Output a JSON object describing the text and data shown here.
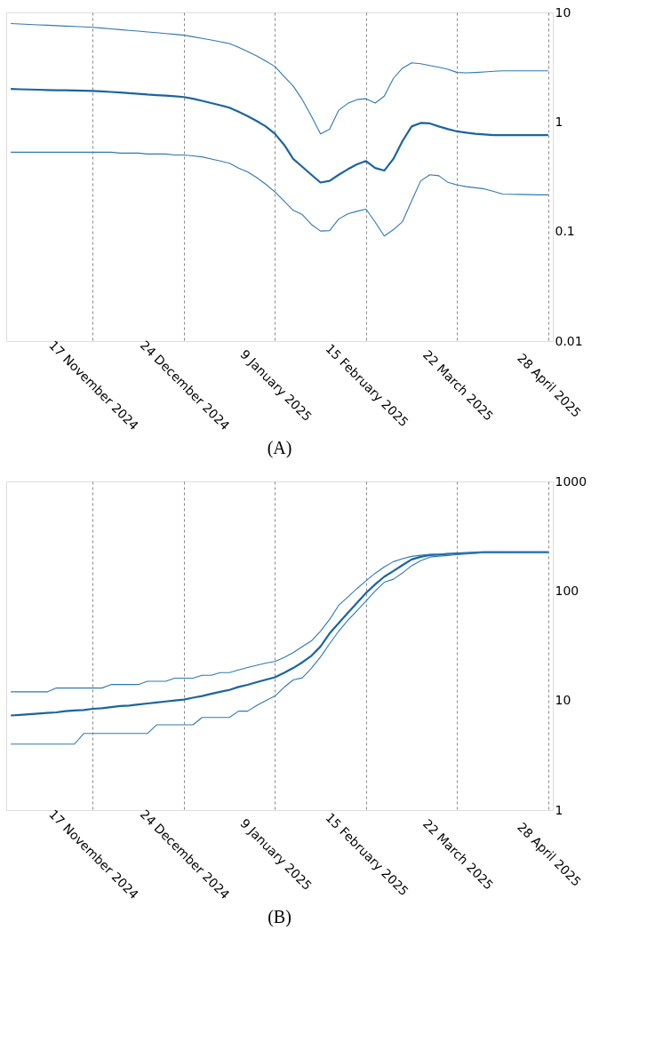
{
  "chart_data": [
    {
      "type": "line",
      "title": "(A)",
      "log": "y",
      "grid": "x",
      "line_style": "solid",
      "marker": "none",
      "ylim": [
        0.01,
        10
      ],
      "categories": [
        null,
        null,
        null,
        null,
        null,
        null,
        null,
        null,
        null,
        "17 November 2024",
        null,
        null,
        null,
        null,
        null,
        null,
        null,
        null,
        null,
        "24 December 2024",
        null,
        null,
        null,
        null,
        null,
        null,
        null,
        null,
        null,
        "9 January 2025",
        null,
        null,
        null,
        null,
        null,
        null,
        null,
        null,
        null,
        "15 February 2025",
        null,
        null,
        null,
        null,
        null,
        null,
        null,
        null,
        null,
        "22 March 2025",
        null,
        null,
        null,
        null,
        null,
        null,
        null,
        null,
        null,
        "28 April 2025"
      ],
      "yticks": [
        0.01,
        0.1,
        1,
        10
      ],
      "series": [
        {
          "color": "#1b64a0",
          "values": [
            2.0,
            1.99,
            1.98,
            1.97,
            1.96,
            1.95,
            1.95,
            1.94,
            1.93,
            1.92,
            1.9,
            1.88,
            1.86,
            1.83,
            1.81,
            1.78,
            1.76,
            1.74,
            1.72,
            1.69,
            1.63,
            1.56,
            1.49,
            1.42,
            1.35,
            1.24,
            1.13,
            1.02,
            0.91,
            0.78,
            0.62,
            0.46,
            0.39,
            0.33,
            0.28,
            0.29,
            0.33,
            0.37,
            0.41,
            0.44,
            0.38,
            0.36,
            0.46,
            0.67,
            0.91,
            0.98,
            0.97,
            0.91,
            0.86,
            0.82,
            0.8,
            0.78,
            0.77,
            0.76,
            0.76,
            0.76,
            0.76,
            0.76,
            0.76,
            0.76
          ]
        },
        {
          "color": "#2f78b4",
          "values": [
            7.92,
            7.85,
            7.78,
            7.71,
            7.64,
            7.58,
            7.51,
            7.45,
            7.38,
            7.31,
            7.2,
            7.08,
            6.97,
            6.86,
            6.75,
            6.64,
            6.53,
            6.42,
            6.31,
            6.2,
            6.0,
            5.8,
            5.6,
            5.4,
            5.2,
            4.8,
            4.4,
            4.0,
            3.6,
            3.21,
            2.6,
            2.13,
            1.6,
            1.13,
            0.78,
            0.86,
            1.28,
            1.48,
            1.6,
            1.63,
            1.49,
            1.72,
            2.5,
            3.1,
            3.47,
            3.4,
            3.28,
            3.16,
            3.03,
            2.83,
            2.81,
            2.83,
            2.86,
            2.9,
            2.93,
            2.93,
            2.93,
            2.93,
            2.93,
            2.93
          ]
        },
        {
          "color": "#2f78b4",
          "values": [
            0.53,
            0.53,
            0.53,
            0.53,
            0.53,
            0.53,
            0.53,
            0.53,
            0.53,
            0.53,
            0.53,
            0.53,
            0.52,
            0.52,
            0.52,
            0.51,
            0.51,
            0.51,
            0.5,
            0.5,
            0.49,
            0.48,
            0.46,
            0.44,
            0.42,
            0.38,
            0.35,
            0.31,
            0.27,
            0.23,
            0.19,
            0.156,
            0.143,
            0.116,
            0.101,
            0.102,
            0.13,
            0.145,
            0.153,
            0.16,
            0.122,
            0.091,
            0.104,
            0.123,
            0.19,
            0.29,
            0.33,
            0.323,
            0.281,
            0.266,
            0.257,
            0.251,
            0.245,
            0.232,
            0.22,
            0.219,
            0.218,
            0.217,
            0.216,
            0.216
          ]
        }
      ]
    },
    {
      "type": "line",
      "title": "(B)",
      "log": "y",
      "grid": "x",
      "line_style": "solid",
      "marker": "none",
      "ylim": [
        1,
        1000
      ],
      "categories": [
        null,
        null,
        null,
        null,
        null,
        null,
        null,
        null,
        null,
        "17 November 2024",
        null,
        null,
        null,
        null,
        null,
        null,
        null,
        null,
        null,
        "24 December 2024",
        null,
        null,
        null,
        null,
        null,
        null,
        null,
        null,
        null,
        "9 January 2025",
        null,
        null,
        null,
        null,
        null,
        null,
        null,
        null,
        null,
        "15 February 2025",
        null,
        null,
        null,
        null,
        null,
        null,
        null,
        null,
        null,
        "22 March 2025",
        null,
        null,
        null,
        null,
        null,
        null,
        null,
        null,
        null,
        "28 April 2025"
      ],
      "yticks": [
        1,
        10,
        100,
        1000
      ],
      "series": [
        {
          "color": "#1b64a0",
          "values": [
            7.3,
            7.4,
            7.5,
            7.6,
            7.7,
            7.8,
            8.0,
            8.1,
            8.2,
            8.4,
            8.5,
            8.7,
            8.9,
            9.0,
            9.2,
            9.4,
            9.6,
            9.8,
            10.0,
            10.2,
            10.6,
            11.0,
            11.5,
            12.0,
            12.5,
            13.3,
            13.9,
            14.7,
            15.5,
            16.3,
            17.9,
            19.8,
            22.3,
            25.6,
            31.1,
            41,
            51,
            63,
            78,
            96,
            115,
            135,
            152,
            172,
            194,
            205,
            213,
            215,
            218,
            220,
            222,
            224,
            226,
            226,
            226,
            226,
            226,
            226,
            226,
            226
          ]
        },
        {
          "color": "#2f78b4",
          "values": [
            12,
            12,
            12,
            12,
            12,
            13,
            13,
            13,
            13,
            13,
            13,
            14,
            14,
            14,
            14,
            15,
            15,
            15,
            16,
            16,
            16,
            17,
            17,
            18,
            18,
            19,
            20,
            21,
            22,
            22.7,
            24.7,
            27.4,
            31,
            35,
            43,
            55,
            74,
            88,
            105,
            124,
            145,
            166,
            185,
            197,
            207,
            212,
            216,
            217,
            219,
            220,
            222,
            224,
            226,
            226,
            226,
            226,
            226,
            226,
            226,
            226
          ]
        },
        {
          "color": "#2f78b4",
          "values": [
            4,
            4,
            4,
            4,
            4,
            4,
            4,
            4,
            5,
            5,
            5,
            5,
            5,
            5,
            5,
            5,
            6,
            6,
            6,
            6,
            6,
            7,
            7,
            7,
            7,
            8,
            8,
            9,
            10,
            11,
            13.2,
            15.4,
            16.1,
            19.7,
            25,
            33,
            43,
            54,
            66,
            81,
            100,
            120,
            128,
            146,
            170,
            189,
            204,
            208,
            211,
            215,
            218,
            221,
            224,
            224,
            224,
            225,
            225,
            226,
            226,
            226
          ]
        }
      ]
    }
  ]
}
